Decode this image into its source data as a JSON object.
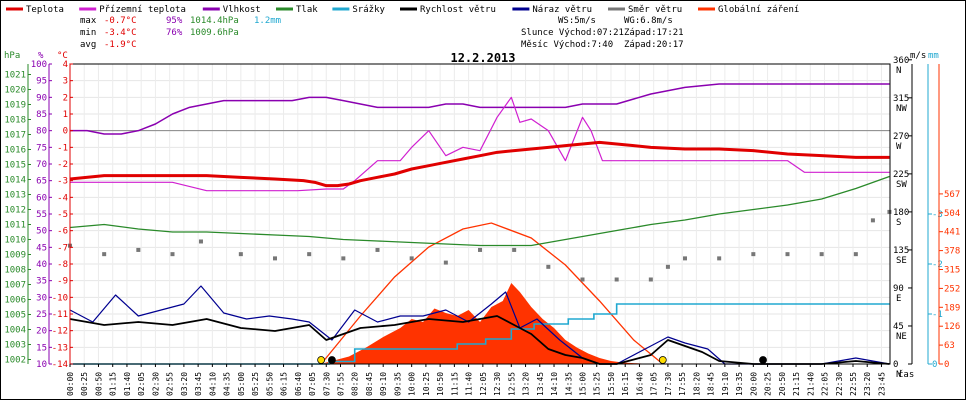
{
  "chart_data": {
    "type": "line",
    "title": "12.2.2013",
    "legend": [
      {
        "label": "Teplota",
        "color": "#e00000"
      },
      {
        "label": "Přízemní teplota",
        "color": "#d020d0"
      },
      {
        "label": "Vlhkost",
        "color": "#8a00b0"
      },
      {
        "label": "Tlak",
        "color": "#2a8a2a"
      },
      {
        "label": "Srážky",
        "color": "#20a8d0"
      },
      {
        "label": "Rychlost větru",
        "color": "#000000"
      },
      {
        "label": "Náraz větru",
        "color": "#000090"
      },
      {
        "label": "Směr větru",
        "color": "#777777"
      },
      {
        "label": "Globální záření",
        "color": "#ff3300"
      }
    ],
    "stats": {
      "max": {
        "label": "max",
        "temp": "-0.7°C",
        "hum": "95%",
        "press": "1014.4hPa",
        "rain": "1.2mm"
      },
      "min": {
        "label": "min",
        "temp": "-3.4°C",
        "hum": "76%",
        "press": "1009.6hPa"
      },
      "avg": {
        "label": "avg",
        "temp": "-1.9°C"
      }
    },
    "info": {
      "ws": "WS:5m/s",
      "wg": "WG:6.8m/s",
      "slunce": "Slunce Východ:07:21",
      "slunce_zapad": "Západ:17:21",
      "mesic": "Měsíc  Východ:7:40",
      "mesic_zapad": "Západ:20:17"
    },
    "axis_units": {
      "hpa": "hPa",
      "pct": "%",
      "degc": "°C",
      "ms": "m/s",
      "mm": "mm",
      "time": "čas"
    },
    "y_axes": {
      "temp": {
        "ticks": [
          4,
          3,
          2,
          1,
          0,
          -1,
          -2,
          -3,
          -4,
          -5,
          -6,
          -7,
          -8,
          -9,
          -10,
          -11,
          -12,
          -13,
          -14
        ]
      },
      "humidity": {
        "ticks": [
          100,
          95,
          90,
          85,
          80,
          75,
          70,
          65,
          60,
          55,
          50,
          45,
          40,
          35,
          30,
          25,
          20,
          15,
          10
        ]
      },
      "pressure": {
        "ticks": [
          1021,
          1020,
          1019,
          1018,
          1017,
          1016,
          1015,
          1014,
          1013,
          1012,
          1011,
          1010,
          1009,
          1008,
          1007,
          1006,
          1005,
          1004,
          1003,
          1002
        ]
      },
      "direction": {
        "ticks": [
          {
            "v": 360,
            "l": "N"
          },
          {
            "v": 315,
            "l": "NW"
          },
          {
            "v": 270,
            "l": "W"
          },
          {
            "v": 225,
            "l": "SW"
          },
          {
            "v": 180,
            "l": "S"
          },
          {
            "v": 135,
            "l": "SE"
          },
          {
            "v": 90,
            "l": "E"
          },
          {
            "v": 45,
            "l": "NE"
          },
          {
            "v": 0,
            "l": "N"
          }
        ]
      },
      "rain": {
        "ticks": [
          "-3",
          "-2",
          "-1",
          "0"
        ]
      },
      "radiation": {
        "ticks": [
          567,
          504,
          441,
          378,
          315,
          252,
          189,
          126,
          63,
          0
        ]
      }
    },
    "x_ticks": [
      "00:00",
      "00:25",
      "00:50",
      "01:15",
      "01:40",
      "02:05",
      "02:30",
      "02:55",
      "03:20",
      "03:45",
      "04:10",
      "04:35",
      "05:00",
      "05:25",
      "05:50",
      "06:15",
      "06:40",
      "07:05",
      "07:30",
      "07:55",
      "08:20",
      "08:45",
      "09:10",
      "09:35",
      "10:00",
      "10:25",
      "10:50",
      "11:15",
      "11:40",
      "12:05",
      "12:30",
      "12:55",
      "13:20",
      "13:45",
      "14:10",
      "14:35",
      "15:00",
      "15:25",
      "15:50",
      "16:15",
      "16:40",
      "17:05",
      "17:30",
      "17:55",
      "18:20",
      "18:45",
      "19:10",
      "19:35",
      "20:00",
      "20:25",
      "20:50",
      "21:15",
      "21:40",
      "22:05",
      "22:30",
      "22:55",
      "23:20",
      "23:45"
    ],
    "series": [
      {
        "name": "Teplota",
        "unit": "°C",
        "x": [
          "00:00",
          "01:00",
          "02:00",
          "03:00",
          "04:00",
          "05:00",
          "06:00",
          "06:50",
          "07:10",
          "07:30",
          "07:50",
          "08:10",
          "08:30",
          "09:00",
          "09:30",
          "10:00",
          "10:30",
          "11:00",
          "11:30",
          "12:00",
          "12:30",
          "13:00",
          "13:30",
          "14:00",
          "14:30",
          "15:00",
          "15:30",
          "16:00",
          "16:30",
          "17:00",
          "18:00",
          "19:00",
          "20:00",
          "21:00",
          "22:00",
          "23:00",
          "23:59"
        ],
        "values": [
          -2.9,
          -2.7,
          -2.7,
          -2.7,
          -2.7,
          -2.8,
          -2.9,
          -3.0,
          -3.1,
          -3.3,
          -3.3,
          -3.2,
          -3.0,
          -2.8,
          -2.6,
          -2.3,
          -2.1,
          -1.9,
          -1.7,
          -1.5,
          -1.3,
          -1.2,
          -1.1,
          -1.0,
          -0.9,
          -0.8,
          -0.7,
          -0.8,
          -0.9,
          -1.0,
          -1.1,
          -1.1,
          -1.2,
          -1.4,
          -1.5,
          -1.6,
          -1.6
        ]
      },
      {
        "name": "Přízemní teplota",
        "unit": "°C",
        "x": [
          "00:00",
          "01:00",
          "02:00",
          "03:00",
          "04:00",
          "05:00",
          "06:00",
          "06:40",
          "07:30",
          "08:00",
          "08:20",
          "09:00",
          "09:40",
          "10:00",
          "10:30",
          "11:00",
          "11:30",
          "12:00",
          "12:30",
          "12:55",
          "13:10",
          "13:30",
          "14:00",
          "14:30",
          "15:00",
          "15:15",
          "15:35",
          "16:00",
          "17:00",
          "18:00",
          "20:00",
          "21:00",
          "21:30",
          "23:59"
        ],
        "values": [
          -3.1,
          -3.1,
          -3.1,
          -3.1,
          -3.6,
          -3.6,
          -3.6,
          -3.6,
          -3.5,
          -3.5,
          -3.0,
          -1.8,
          -1.8,
          -1.0,
          0.0,
          -1.5,
          -1.0,
          -1.2,
          0.8,
          2.0,
          0.5,
          0.7,
          0.0,
          -1.8,
          0.8,
          0.0,
          -1.8,
          -1.8,
          -1.8,
          -1.8,
          -1.8,
          -1.8,
          -2.5,
          -2.5
        ]
      },
      {
        "name": "Vlhkost",
        "unit": "%",
        "x": [
          "00:00",
          "00:30",
          "01:00",
          "01:30",
          "02:00",
          "02:30",
          "03:00",
          "03:30",
          "04:00",
          "04:30",
          "05:00",
          "05:30",
          "06:00",
          "06:30",
          "07:00",
          "07:30",
          "08:00",
          "08:30",
          "09:00",
          "09:30",
          "10:00",
          "10:30",
          "11:00",
          "11:30",
          "12:00",
          "12:30",
          "13:00",
          "13:30",
          "14:00",
          "14:30",
          "15:00",
          "15:30",
          "16:00",
          "17:00",
          "18:00",
          "19:00",
          "20:00",
          "21:00",
          "22:00",
          "23:00",
          "23:59"
        ],
        "values": [
          80,
          80,
          79,
          79,
          80,
          82,
          85,
          87,
          88,
          89,
          89,
          89,
          89,
          89,
          90,
          90,
          89,
          88,
          87,
          87,
          87,
          87,
          88,
          88,
          87,
          87,
          87,
          87,
          87,
          87,
          88,
          88,
          88,
          91,
          93,
          94,
          94,
          94,
          94,
          94,
          94
        ]
      },
      {
        "name": "Tlak",
        "unit": "hPa",
        "x": [
          "00:00",
          "01:00",
          "02:00",
          "03:00",
          "04:00",
          "05:00",
          "06:00",
          "07:00",
          "08:00",
          "09:00",
          "10:00",
          "11:00",
          "12:00",
          "13:00",
          "13:30",
          "14:00",
          "15:00",
          "16:00",
          "17:00",
          "18:00",
          "19:00",
          "20:00",
          "21:00",
          "22:00",
          "23:00",
          "23:59"
        ],
        "values": [
          1010.8,
          1011.0,
          1010.7,
          1010.5,
          1010.5,
          1010.4,
          1010.3,
          1010.2,
          1010.0,
          1009.9,
          1009.8,
          1009.7,
          1009.6,
          1009.6,
          1009.6,
          1009.8,
          1010.2,
          1010.6,
          1011.0,
          1011.3,
          1011.7,
          1012.0,
          1012.3,
          1012.7,
          1013.4,
          1014.2
        ]
      },
      {
        "name": "Srážky",
        "unit": "mm",
        "x": [
          "00:00",
          "07:00",
          "07:35",
          "08:20",
          "09:05",
          "10:20",
          "11:20",
          "12:10",
          "12:55",
          "13:35",
          "14:35",
          "15:20",
          "16:00",
          "23:59"
        ],
        "values": [
          0,
          0,
          0.05,
          0.3,
          0.3,
          0.3,
          0.4,
          0.5,
          0.7,
          0.8,
          0.9,
          1.0,
          1.2,
          1.2
        ]
      },
      {
        "name": "Rychlost větru",
        "unit": "m/s",
        "x": [
          "00:00",
          "01:00",
          "02:00",
          "03:00",
          "04:00",
          "05:00",
          "06:00",
          "07:00",
          "07:30",
          "08:30",
          "09:30",
          "10:30",
          "11:30",
          "12:30",
          "13:00",
          "13:30",
          "14:00",
          "14:30",
          "15:00",
          "15:30",
          "16:00",
          "17:00",
          "17:30",
          "18:00",
          "18:30",
          "19:00",
          "20:00",
          "21:00",
          "22:00",
          "23:00",
          "23:59"
        ],
        "values": [
          1.5,
          1.3,
          1.4,
          1.3,
          1.5,
          1.2,
          1.1,
          1.3,
          0.8,
          1.2,
          1.3,
          1.5,
          1.4,
          1.6,
          1.3,
          1.0,
          0.5,
          0.3,
          0.2,
          0,
          0,
          0.3,
          0.8,
          0.6,
          0.4,
          0.1,
          0,
          0,
          0,
          0.1,
          0
        ]
      },
      {
        "name": "Náraz větru",
        "unit": "m/s",
        "x": [
          "00:00",
          "00:40",
          "01:20",
          "02:00",
          "02:40",
          "03:20",
          "03:50",
          "04:30",
          "05:10",
          "05:50",
          "06:30",
          "07:00",
          "07:40",
          "08:20",
          "09:00",
          "09:40",
          "10:20",
          "11:00",
          "11:40",
          "12:20",
          "12:45",
          "13:10",
          "13:40",
          "14:20",
          "15:00",
          "15:30",
          "16:00",
          "17:00",
          "17:30",
          "18:00",
          "18:40",
          "19:10",
          "20:00",
          "22:00",
          "23:00",
          "23:59"
        ],
        "values": [
          1.8,
          1.4,
          2.3,
          1.6,
          1.8,
          2.0,
          2.6,
          1.7,
          1.5,
          1.6,
          1.5,
          1.4,
          0.8,
          1.8,
          1.4,
          1.6,
          1.6,
          1.8,
          1.4,
          2.0,
          2.4,
          1.2,
          1.5,
          0.8,
          0.2,
          0,
          0,
          0.6,
          0.9,
          0.7,
          0.5,
          0,
          0,
          0,
          0.2,
          0
        ]
      },
      {
        "name": "Směr větru",
        "unit": "°",
        "x": [
          "00:00",
          "01:00",
          "02:00",
          "03:00",
          "03:50",
          "05:00",
          "06:00",
          "07:00",
          "08:00",
          "09:00",
          "10:00",
          "11:00",
          "12:00",
          "13:00",
          "14:00",
          "15:00",
          "16:00",
          "17:00",
          "17:30",
          "18:00",
          "19:00",
          "20:00",
          "21:00",
          "22:00",
          "23:00",
          "23:30",
          "23:59"
        ],
        "values": [
          140,
          130,
          135,
          130,
          145,
          130,
          125,
          130,
          125,
          135,
          125,
          120,
          135,
          135,
          115,
          100,
          100,
          100,
          115,
          125,
          125,
          130,
          130,
          130,
          130,
          170,
          180
        ]
      },
      {
        "name": "Globální záření",
        "unit": "W/m²",
        "x": [
          "00:00",
          "07:20",
          "07:40",
          "08:10",
          "08:40",
          "09:10",
          "09:40",
          "10:00",
          "10:20",
          "10:40",
          "11:00",
          "11:20",
          "11:40",
          "12:00",
          "12:20",
          "12:40",
          "12:55",
          "13:10",
          "13:30",
          "13:50",
          "14:10",
          "14:30",
          "14:50",
          "15:10",
          "15:30",
          "15:50",
          "16:10",
          "16:30",
          "17:00",
          "17:20",
          "23:59"
        ],
        "values": [
          0,
          0,
          10,
          25,
          55,
          90,
          120,
          150,
          140,
          185,
          170,
          160,
          180,
          140,
          190,
          210,
          270,
          240,
          190,
          150,
          120,
          80,
          55,
          35,
          20,
          10,
          5,
          3,
          0,
          0,
          0
        ]
      }
    ],
    "theoretical_radiation": {
      "name": "Globální záření (teoretické)",
      "x": [
        "07:21",
        "08:30",
        "09:30",
        "10:30",
        "11:30",
        "12:20",
        "13:30",
        "14:30",
        "15:30",
        "16:30",
        "17:21"
      ],
      "values": [
        0,
        160,
        290,
        390,
        450,
        470,
        420,
        330,
        210,
        80,
        0
      ]
    },
    "events": {
      "sunrise": "07:21",
      "sunset": "17:21",
      "moonrise": "07:40",
      "moonset": "20:17"
    },
    "colors": {
      "temp_axis": "#e00000",
      "humidity_axis": "#8a00b0",
      "pressure_axis": "#2a8a2a",
      "rain_axis": "#20a8d0",
      "radiation_axis": "#ff3300"
    }
  }
}
